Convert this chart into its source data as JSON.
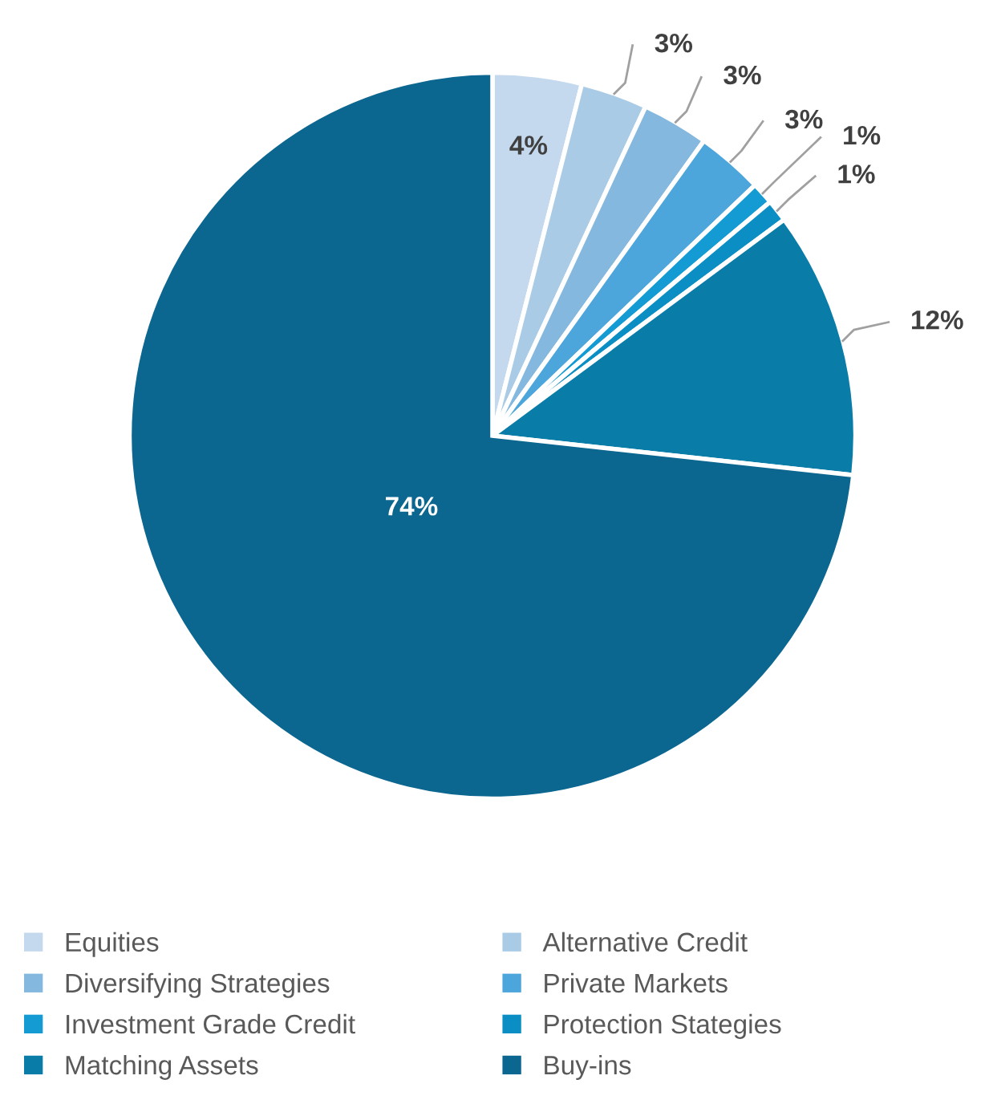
{
  "chart_data": {
    "type": "pie",
    "categories": [
      "Equities",
      "Alternative Credit",
      "Diversifying Strategies",
      "Private Markets",
      "Investment Grade Credit",
      "Protection Stategies",
      "Matching Assets",
      "Buy-ins"
    ],
    "values": [
      4,
      3,
      3,
      3,
      1,
      1,
      12,
      74
    ],
    "colors": [
      "#c5d9ee",
      "#a9cbe6",
      "#84b8df",
      "#4da6db",
      "#149bd4",
      "#0b8ec4",
      "#0a7ca8",
      "#0b6690"
    ],
    "value_labels": [
      "4%",
      "3%",
      "3%",
      "3%",
      "1%",
      "1%",
      "12%",
      "74%"
    ],
    "legend": "bottom"
  }
}
